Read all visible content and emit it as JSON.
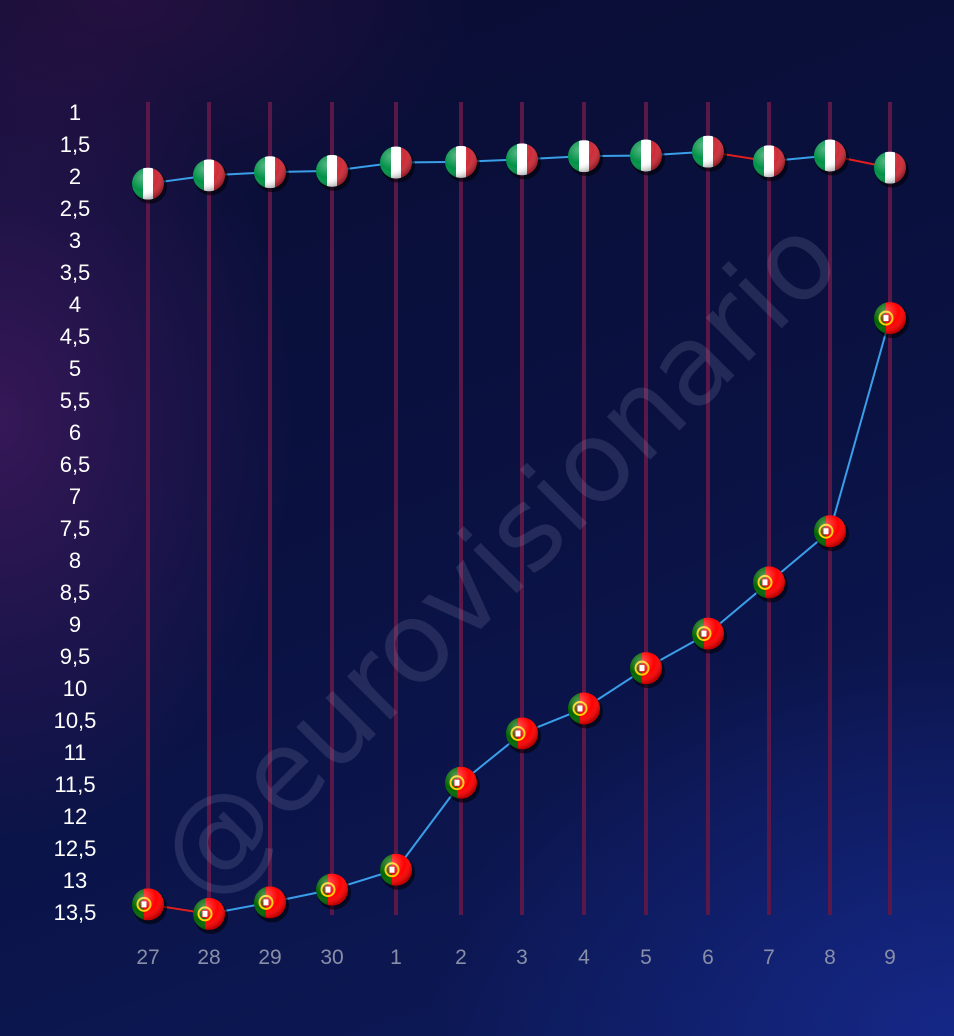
{
  "watermark": "@eurovisionario",
  "chart_data": {
    "type": "line",
    "categories": [
      "27",
      "28",
      "29",
      "30",
      "1",
      "2",
      "3",
      "4",
      "5",
      "6",
      "7",
      "8",
      "9"
    ],
    "y_ticks": [
      "1",
      "1,5",
      "2",
      "2,5",
      "3",
      "3,5",
      "4",
      "4,5",
      "5",
      "5,5",
      "6",
      "6,5",
      "7",
      "7,5",
      "8",
      "8,5",
      "9",
      "9,5",
      "10",
      "10,5",
      "11",
      "11,5",
      "12",
      "12,5",
      "13",
      "13,5"
    ],
    "ylim": [
      1,
      13.5
    ],
    "y_inverted": true,
    "series": [
      {
        "marker": "italy-flag",
        "values": [
          2.12,
          1.99,
          1.94,
          1.92,
          1.79,
          1.78,
          1.74,
          1.69,
          1.68,
          1.62,
          1.77,
          1.68,
          1.87
        ]
      },
      {
        "marker": "portugal-flag",
        "values": [
          13.38,
          13.53,
          13.35,
          13.15,
          12.84,
          11.48,
          10.71,
          10.32,
          9.69,
          9.15,
          8.35,
          7.55,
          4.22
        ]
      }
    ],
    "segment_colors": {
      "worse": "#e0201c",
      "better": "#3a9ee8"
    },
    "grid_color": "#5a1848",
    "flag_colors": {
      "italy": [
        "#009246",
        "#ffffff",
        "#ce2b37"
      ],
      "portugal": [
        "#006600",
        "#ff0000",
        "#ffcc00"
      ]
    },
    "grid": true
  }
}
